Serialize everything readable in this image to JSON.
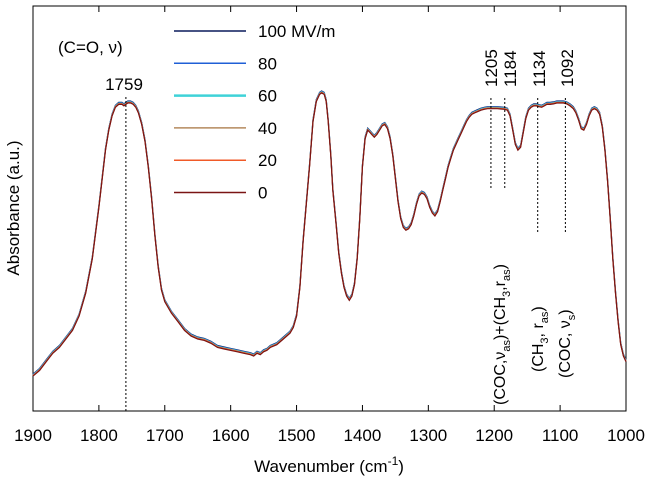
{
  "chart_data": {
    "type": "line",
    "title": "",
    "xlabel_main": "Wavenumber (cm",
    "xlabel_sup": "-1",
    "xlabel_close": ")",
    "ylabel": "Absorbance (a.u.)",
    "xlim": [
      1900,
      1000
    ],
    "x_reversed": true,
    "y_ticks_shown": false,
    "xticks": [
      "1900",
      "1800",
      "1700",
      "1600",
      "1500",
      "1400",
      "1300",
      "1200",
      "1100",
      "1000"
    ],
    "legend": {
      "placement": "top-left",
      "entries": [
        {
          "label": "100 MV/m",
          "color": "#0a1a5c"
        },
        {
          "label": "80",
          "color": "#1f5fd6"
        },
        {
          "label": "60",
          "color": "#3fd2d8"
        },
        {
          "label": "40",
          "color": "#b48a5e"
        },
        {
          "label": "20",
          "color": "#f05a28"
        },
        {
          "label": "0",
          "color": "#7a1414"
        }
      ]
    },
    "series_profile": {
      "x": [
        1900,
        1890,
        1880,
        1870,
        1860,
        1850,
        1840,
        1830,
        1820,
        1810,
        1800,
        1795,
        1790,
        1785,
        1780,
        1775,
        1770,
        1765,
        1762,
        1759,
        1756,
        1752,
        1748,
        1744,
        1740,
        1735,
        1730,
        1725,
        1720,
        1715,
        1710,
        1705,
        1700,
        1690,
        1680,
        1670,
        1660,
        1650,
        1640,
        1630,
        1620,
        1610,
        1600,
        1590,
        1580,
        1570,
        1565,
        1560,
        1555,
        1550,
        1545,
        1540,
        1530,
        1520,
        1510,
        1505,
        1500,
        1495,
        1490,
        1480,
        1475,
        1470,
        1465,
        1462,
        1458,
        1455,
        1452,
        1448,
        1445,
        1440,
        1436,
        1432,
        1428,
        1424,
        1420,
        1416,
        1412,
        1408,
        1404,
        1400,
        1396,
        1392,
        1388,
        1386,
        1382,
        1378,
        1374,
        1370,
        1366,
        1362,
        1358,
        1354,
        1350,
        1346,
        1342,
        1338,
        1334,
        1330,
        1326,
        1322,
        1318,
        1314,
        1310,
        1306,
        1302,
        1298,
        1294,
        1290,
        1286,
        1282,
        1278,
        1274,
        1270,
        1266,
        1262,
        1258,
        1254,
        1250,
        1246,
        1242,
        1238,
        1234,
        1230,
        1225,
        1220,
        1215,
        1210,
        1205,
        1200,
        1195,
        1190,
        1185,
        1180,
        1176,
        1172,
        1168,
        1164,
        1160,
        1156,
        1152,
        1148,
        1144,
        1140,
        1136,
        1132,
        1128,
        1124,
        1120,
        1115,
        1110,
        1105,
        1100,
        1095,
        1090,
        1085,
        1080,
        1076,
        1072,
        1068,
        1064,
        1060,
        1056,
        1052,
        1048,
        1044,
        1040,
        1036,
        1032,
        1028,
        1024,
        1020,
        1016,
        1012,
        1008,
        1004,
        1000
      ],
      "y": [
        0.01,
        0.03,
        0.06,
        0.09,
        0.11,
        0.14,
        0.17,
        0.22,
        0.3,
        0.42,
        0.6,
        0.7,
        0.8,
        0.87,
        0.92,
        0.95,
        0.96,
        0.96,
        0.955,
        0.96,
        0.965,
        0.965,
        0.96,
        0.95,
        0.93,
        0.89,
        0.83,
        0.74,
        0.63,
        0.5,
        0.39,
        0.31,
        0.27,
        0.23,
        0.2,
        0.17,
        0.15,
        0.14,
        0.135,
        0.125,
        0.11,
        0.105,
        0.1,
        0.095,
        0.09,
        0.085,
        0.08,
        0.09,
        0.085,
        0.095,
        0.1,
        0.11,
        0.12,
        0.14,
        0.16,
        0.18,
        0.22,
        0.32,
        0.48,
        0.75,
        0.9,
        0.97,
        0.995,
        1.0,
        0.995,
        0.97,
        0.9,
        0.78,
        0.66,
        0.54,
        0.44,
        0.37,
        0.32,
        0.29,
        0.275,
        0.29,
        0.33,
        0.42,
        0.56,
        0.74,
        0.84,
        0.87,
        0.86,
        0.855,
        0.845,
        0.855,
        0.87,
        0.885,
        0.89,
        0.875,
        0.84,
        0.78,
        0.7,
        0.62,
        0.56,
        0.53,
        0.52,
        0.525,
        0.54,
        0.57,
        0.61,
        0.64,
        0.65,
        0.645,
        0.63,
        0.6,
        0.58,
        0.57,
        0.585,
        0.62,
        0.66,
        0.7,
        0.74,
        0.77,
        0.8,
        0.82,
        0.84,
        0.86,
        0.88,
        0.9,
        0.915,
        0.925,
        0.93,
        0.935,
        0.94,
        0.943,
        0.945,
        0.945,
        0.945,
        0.945,
        0.944,
        0.943,
        0.94,
        0.92,
        0.87,
        0.82,
        0.8,
        0.81,
        0.86,
        0.91,
        0.94,
        0.95,
        0.955,
        0.955,
        0.952,
        0.95,
        0.955,
        0.96,
        0.96,
        0.962,
        0.965,
        0.965,
        0.965,
        0.962,
        0.955,
        0.945,
        0.93,
        0.905,
        0.875,
        0.87,
        0.89,
        0.92,
        0.94,
        0.945,
        0.94,
        0.925,
        0.88,
        0.8,
        0.69,
        0.56,
        0.42,
        0.3,
        0.2,
        0.12,
        0.08,
        0.06
      ]
    },
    "peak_labels": [
      {
        "text": "1759",
        "x": 1759
      },
      {
        "text": "1205",
        "x": 1205
      },
      {
        "text": "1184",
        "x": 1184
      },
      {
        "text": "1134",
        "x": 1134
      },
      {
        "text": "1092",
        "x": 1092
      }
    ],
    "annotations": {
      "carbonyl": "(C=O, ν)",
      "band1_a": "(COC,ν",
      "band1_b": "as",
      "band1_c": ")+(CH",
      "band1_d": "3",
      "band1_e": ",r",
      "band1_f": "as",
      "band1_g": ")",
      "band2_a": "(CH",
      "band2_b": "3",
      "band2_c": ", r",
      "band2_d": "as",
      "band2_e": ")",
      "band3_a": "(COC, ν",
      "band3_b": "s",
      "band3_c": ")"
    }
  }
}
